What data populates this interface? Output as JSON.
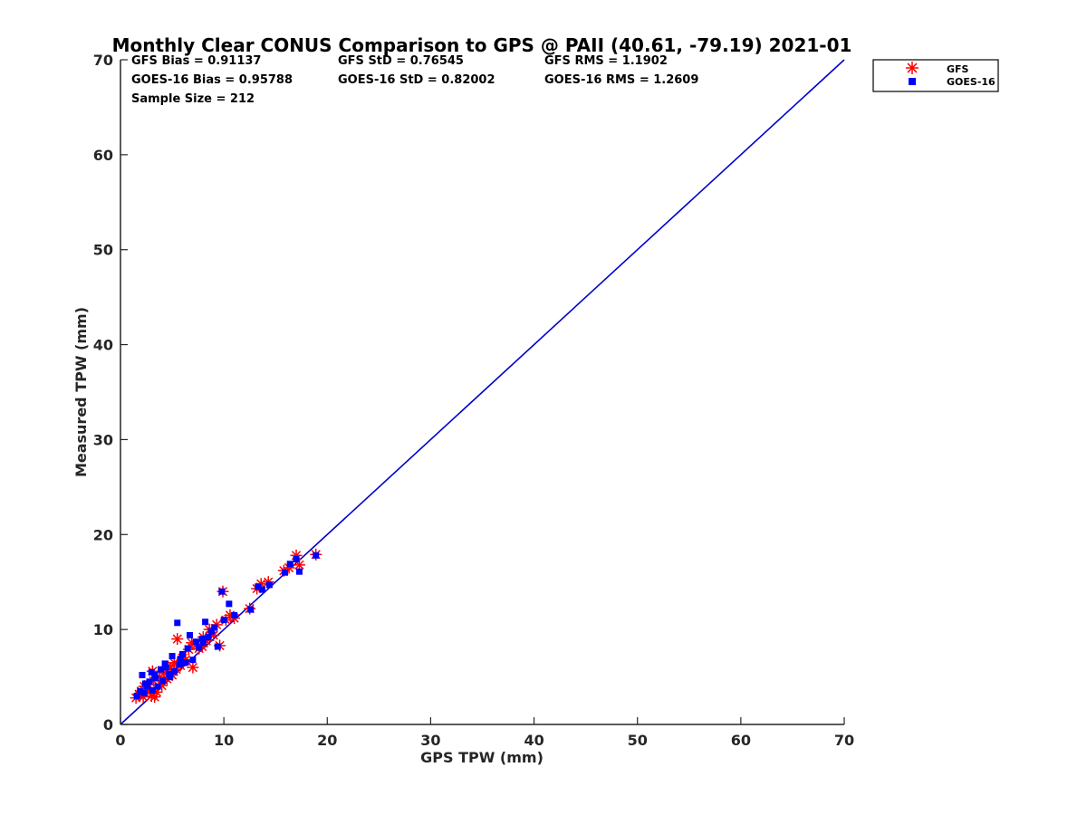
{
  "chart_data": {
    "type": "scatter",
    "title": "Monthly Clear CONUS Comparison to GPS @ PAII (40.61, -79.19) 2021-01",
    "xlabel": "GPS TPW (mm)",
    "ylabel": "Measured TPW (mm)",
    "xlim": [
      0,
      70
    ],
    "ylim": [
      0,
      70
    ],
    "xticks": [
      "0",
      "10",
      "20",
      "30",
      "40",
      "50",
      "60",
      "70"
    ],
    "yticks": [
      "0",
      "10",
      "20",
      "30",
      "40",
      "50",
      "60",
      "70"
    ],
    "grid": false,
    "legend_position": "outside-top-right",
    "reference_line": {
      "x": [
        0,
        70
      ],
      "y": [
        0,
        70
      ],
      "color": "#0000cc"
    },
    "stats": {
      "gfs_bias": "GFS Bias = 0.91137",
      "gfs_std": "GFS StD = 0.76545",
      "gfs_rms": "GFS RMS = 1.1902",
      "goes_bias": "GOES-16 Bias = 0.95788",
      "goes_std": "GOES-16 StD = 0.82002",
      "goes_rms": "GOES-16 RMS = 1.2609",
      "sample_size": "Sample Size = 212"
    },
    "series": [
      {
        "name": "GFS",
        "marker": "asterisk",
        "color": "#ff0000",
        "points": [
          [
            1.5,
            2.8
          ],
          [
            1.8,
            3.2
          ],
          [
            2.0,
            3.5
          ],
          [
            2.2,
            2.9
          ],
          [
            2.5,
            3.8
          ],
          [
            2.7,
            4.2
          ],
          [
            3.0,
            3.0
          ],
          [
            3.2,
            4.6
          ],
          [
            3.5,
            3.4
          ],
          [
            3.8,
            5.0
          ],
          [
            4.0,
            4.1
          ],
          [
            4.2,
            5.4
          ],
          [
            4.5,
            4.8
          ],
          [
            4.8,
            5.9
          ],
          [
            5.0,
            5.2
          ],
          [
            5.2,
            6.5
          ],
          [
            5.5,
            9.0
          ],
          [
            5.8,
            6.2
          ],
          [
            6.0,
            7.0
          ],
          [
            6.3,
            6.8
          ],
          [
            6.6,
            7.9
          ],
          [
            7.0,
            6.0
          ],
          [
            7.3,
            8.4
          ],
          [
            7.6,
            8.0
          ],
          [
            8.0,
            9.2
          ],
          [
            8.3,
            8.8
          ],
          [
            8.6,
            10.0
          ],
          [
            9.0,
            9.4
          ],
          [
            9.3,
            10.5
          ],
          [
            9.6,
            8.3
          ],
          [
            9.9,
            14.0
          ],
          [
            10.2,
            11.0
          ],
          [
            10.6,
            11.5
          ],
          [
            11.0,
            11.2
          ],
          [
            12.5,
            12.2
          ],
          [
            13.2,
            14.3
          ],
          [
            13.6,
            14.8
          ],
          [
            14.3,
            15.0
          ],
          [
            15.8,
            16.2
          ],
          [
            16.3,
            16.5
          ],
          [
            17.0,
            17.8
          ],
          [
            17.3,
            16.8
          ],
          [
            18.9,
            17.9
          ],
          [
            2.3,
            4.0
          ],
          [
            3.1,
            5.6
          ],
          [
            3.3,
            2.9
          ],
          [
            4.6,
            6.1
          ],
          [
            6.9,
            8.6
          ],
          [
            7.9,
            8.2
          ],
          [
            8.8,
            9.7
          ],
          [
            2.9,
            3.5
          ],
          [
            5.4,
            5.8
          ]
        ]
      },
      {
        "name": "GOES-16",
        "marker": "square",
        "color": "#0000ff",
        "points": [
          [
            1.6,
            3.0
          ],
          [
            1.9,
            3.5
          ],
          [
            2.1,
            5.2
          ],
          [
            2.3,
            3.3
          ],
          [
            2.6,
            4.0
          ],
          [
            2.8,
            4.5
          ],
          [
            3.1,
            3.6
          ],
          [
            3.3,
            5.2
          ],
          [
            3.6,
            4.0
          ],
          [
            3.9,
            5.8
          ],
          [
            4.1,
            4.6
          ],
          [
            4.4,
            6.0
          ],
          [
            4.7,
            5.3
          ],
          [
            5.0,
            7.2
          ],
          [
            5.2,
            5.6
          ],
          [
            5.5,
            10.7
          ],
          [
            5.7,
            6.3
          ],
          [
            6.0,
            7.4
          ],
          [
            6.3,
            6.5
          ],
          [
            6.7,
            9.4
          ],
          [
            7.0,
            6.8
          ],
          [
            7.3,
            8.7
          ],
          [
            7.6,
            8.1
          ],
          [
            7.9,
            9.0
          ],
          [
            8.2,
            10.8
          ],
          [
            8.5,
            9.2
          ],
          [
            8.8,
            9.8
          ],
          [
            9.1,
            10.2
          ],
          [
            9.4,
            8.2
          ],
          [
            9.8,
            14.0
          ],
          [
            10.0,
            11.0
          ],
          [
            10.5,
            12.7
          ],
          [
            11.0,
            11.5
          ],
          [
            12.6,
            12.1
          ],
          [
            13.3,
            14.5
          ],
          [
            13.7,
            14.2
          ],
          [
            14.4,
            14.7
          ],
          [
            15.9,
            16.0
          ],
          [
            16.4,
            16.9
          ],
          [
            17.0,
            17.4
          ],
          [
            17.3,
            16.1
          ],
          [
            18.9,
            17.8
          ],
          [
            2.4,
            4.3
          ],
          [
            3.0,
            5.5
          ],
          [
            4.3,
            6.4
          ],
          [
            6.5,
            8.0
          ],
          [
            8.0,
            8.6
          ],
          [
            3.4,
            4.9
          ],
          [
            4.8,
            5.0
          ],
          [
            5.8,
            6.9
          ]
        ]
      }
    ]
  }
}
